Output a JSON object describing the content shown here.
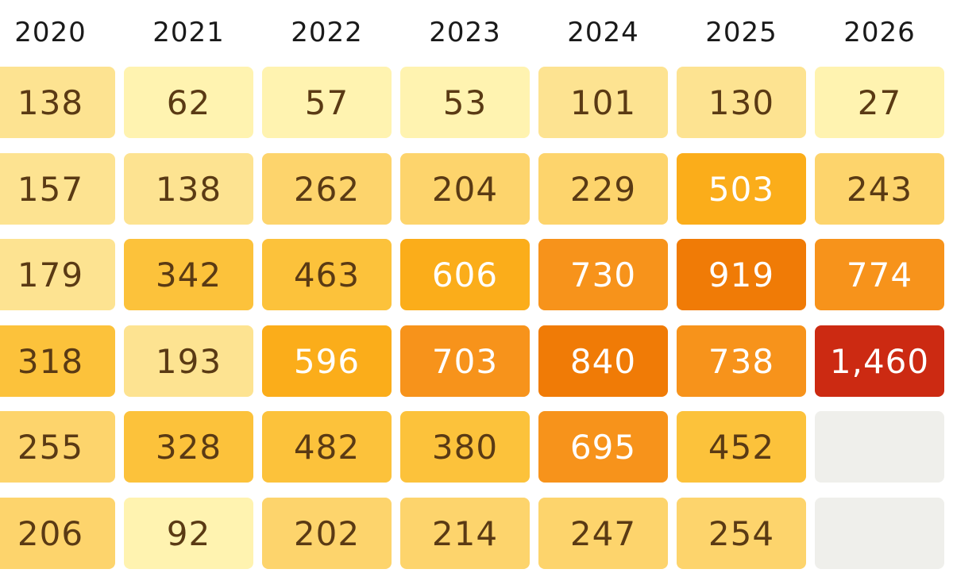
{
  "chart_data": {
    "type": "heatmap",
    "columns": [
      "2020",
      "2021",
      "2022",
      "2023",
      "2024",
      "2025",
      "2026"
    ],
    "rows": [
      [
        138,
        62,
        57,
        53,
        101,
        130,
        27
      ],
      [
        157,
        138,
        262,
        204,
        229,
        503,
        243
      ],
      [
        179,
        342,
        463,
        606,
        730,
        919,
        774
      ],
      [
        318,
        193,
        596,
        703,
        840,
        738,
        1460
      ],
      [
        255,
        328,
        482,
        380,
        695,
        452,
        null
      ],
      [
        206,
        92,
        202,
        214,
        247,
        254,
        null
      ]
    ],
    "value_format": "thousands-separator",
    "colors": {
      "empty": "#efefeb",
      "text_dark": "#5a3a14",
      "text_light": "#ffffff",
      "scale": [
        "#fff3b0",
        "#fde391",
        "#fdd46c",
        "#fcc23b",
        "#fbad1a",
        "#f7931b",
        "#f07b06",
        "#cc2a12"
      ]
    }
  }
}
